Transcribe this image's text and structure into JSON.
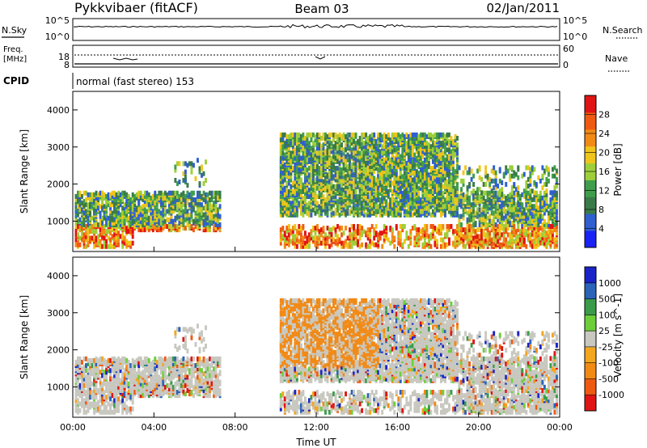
{
  "header": {
    "title": "Pykkvibaer (fitACF)",
    "beam": "Beam 03",
    "date": "02/Jan/2011",
    "cpid_label": "CPID",
    "cpid_text": "normal (fast stereo) 153"
  },
  "colors": {
    "power_scale": [
      "#1a23f5",
      "#2f5fd0",
      "#3a7a48",
      "#3f9e4c",
      "#9ecf3a",
      "#f0c51b",
      "#f28a16",
      "#ef5a12",
      "#e01414"
    ],
    "velocity_scale": [
      "#e01414",
      "#ef5a12",
      "#f28a16",
      "#f3a61e",
      "#c8c8c0",
      "#6ccf3a",
      "#3a9c4a",
      "#2a63b8",
      "#1a23c8"
    ]
  },
  "chart_data": [
    {
      "type": "line",
      "name": "nsky-nsearch-panel",
      "left_label": "N.Sky",
      "right_label": "N.Search",
      "left_ticks": [
        "10^5",
        "10^0"
      ],
      "right_ticks": [
        "10^5",
        "10^0"
      ]
    },
    {
      "type": "line",
      "name": "freq-nave-panel",
      "left_label_line1": "Freq.",
      "left_label_line2": "[MHz]",
      "right_label": "Nave",
      "left_ticks": [
        "18",
        "8"
      ],
      "right_ticks": [
        "60",
        "0"
      ]
    },
    {
      "type": "heatmap",
      "name": "power-panel",
      "ylabel": "Slant Range [km]",
      "yticks": [
        "4000",
        "3000",
        "2000",
        "1000"
      ],
      "ylim": [
        180,
        4500
      ],
      "xlim_hours": [
        0,
        24
      ],
      "colorbar_label": "Power [dB]",
      "colorbar_ticks": [
        "28",
        "24",
        "20",
        "16",
        "12",
        "8",
        "4"
      ],
      "colorbar_range": [
        0,
        32
      ]
    },
    {
      "type": "heatmap",
      "name": "velocity-panel",
      "ylabel": "Slant Range [km]",
      "yticks": [
        "4000",
        "3000",
        "2000",
        "1000"
      ],
      "ylim": [
        180,
        4500
      ],
      "xlim_hours": [
        0,
        24
      ],
      "colorbar_label": "Velocity [m s^-1]",
      "colorbar_ticks": [
        "1000",
        "500",
        "100",
        "25",
        "-25",
        "-100",
        "-500",
        "-1000"
      ],
      "xlabel": "Time UT",
      "xticks": [
        "00:00",
        "04:00",
        "08:00",
        "12:00",
        "16:00",
        "20:00",
        "00:00"
      ]
    }
  ]
}
